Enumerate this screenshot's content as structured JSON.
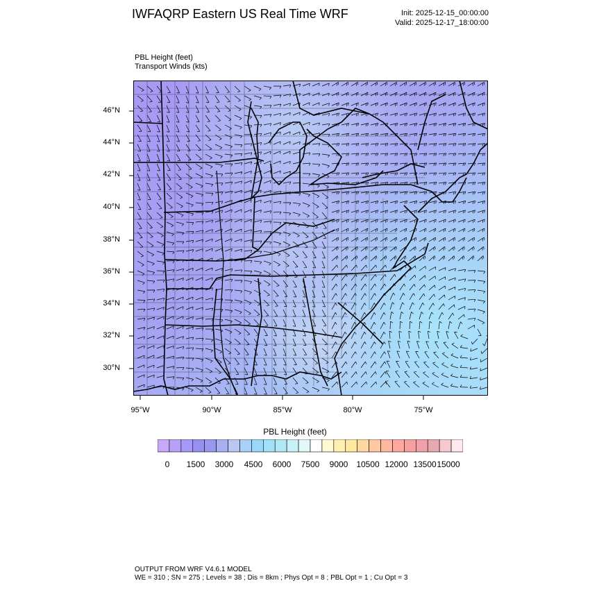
{
  "header": {
    "title": "IWFAQRP Eastern US Real Time WRF",
    "init": "Init: 2025-12-15_00:00:00",
    "valid": "Valid: 2025-12-17_18:00:00"
  },
  "map": {
    "field_label": "PBL Height   (feet)",
    "wind_label": "Transport Winds   (kts)",
    "lat_ticks": [
      "46°N",
      "44°N",
      "42°N",
      "40°N",
      "38°N",
      "36°N",
      "34°N",
      "32°N",
      "30°N"
    ],
    "lon_ticks": [
      "95°W",
      "90°W",
      "85°W",
      "80°W",
      "75°W"
    ]
  },
  "colorbar": {
    "title": "PBL Height  (feet)",
    "labels": [
      "0",
      "1500",
      "3000",
      "4500",
      "6000",
      "7500",
      "9000",
      "10500",
      "12000",
      "13500",
      "15000"
    ],
    "colors": [
      "#c8a8f8",
      "#b8a0f8",
      "#a898f8",
      "#9890f0",
      "#9898f0",
      "#a8b0f0",
      "#b8c8f0",
      "#a8d0f8",
      "#98d8f8",
      "#a0e0f8",
      "#b0e8f8",
      "#c8f0f8",
      "#e0f8f8",
      "#ffffff",
      "#fff8d0",
      "#fff0b0",
      "#ffe8a0",
      "#ffd8a0",
      "#ffc8a0",
      "#ffb8a0",
      "#ffa8a0",
      "#f8a0a0",
      "#f0a0a8",
      "#e8a8b0",
      "#f8c8d0",
      "#ffe8ee"
    ]
  },
  "footer": {
    "line1": "OUTPUT FROM WRF V4.6.1 MODEL",
    "line2": "WE = 310 ; SN = 275 ; Levels = 38 ; Dis = 8km ; Phys Opt = 8 ; PBL Opt = 1 ; Cu Opt = 3"
  }
}
